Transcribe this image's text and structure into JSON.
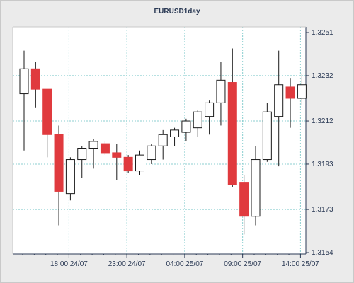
{
  "chart_data": {
    "type": "candlestick",
    "title": "EURUSD1day",
    "y_ticks": [
      "1.3251",
      "1.3232",
      "1.3212",
      "1.3193",
      "1.3173",
      "1.3154"
    ],
    "x_ticks": [
      {
        "label": "18:00 24/07",
        "index": 4
      },
      {
        "label": "23:00 24/07",
        "index": 9
      },
      {
        "label": "04:00 25/07",
        "index": 14
      },
      {
        "label": "09:00 25/07",
        "index": 19
      },
      {
        "label": "14:00 25/07",
        "index": 24
      }
    ],
    "ylim": [
      1.3154,
      1.3251
    ],
    "grid": true,
    "colors": {
      "up_fill": "#ffffff",
      "down_fill": "#e03a3e",
      "outline": "#1a1a1a",
      "grid": "#8ccfd0",
      "plot_bg": "#ffffff"
    },
    "candles": [
      {
        "open": 1.3224,
        "high": 1.3243,
        "low": 1.3199,
        "close": 1.3235
      },
      {
        "open": 1.3235,
        "high": 1.3238,
        "low": 1.3218,
        "close": 1.3226
      },
      {
        "open": 1.3226,
        "high": 1.3226,
        "low": 1.3196,
        "close": 1.3206
      },
      {
        "open": 1.3206,
        "high": 1.321,
        "low": 1.3166,
        "close": 1.3181
      },
      {
        "open": 1.318,
        "high": 1.3196,
        "low": 1.3177,
        "close": 1.3195
      },
      {
        "open": 1.3195,
        "high": 1.3201,
        "low": 1.3187,
        "close": 1.32
      },
      {
        "open": 1.32,
        "high": 1.3204,
        "low": 1.3191,
        "close": 1.3203
      },
      {
        "open": 1.3202,
        "high": 1.3203,
        "low": 1.3197,
        "close": 1.3198
      },
      {
        "open": 1.3198,
        "high": 1.3202,
        "low": 1.3186,
        "close": 1.3196
      },
      {
        "open": 1.3196,
        "high": 1.3197,
        "low": 1.3189,
        "close": 1.319
      },
      {
        "open": 1.319,
        "high": 1.3199,
        "low": 1.3188,
        "close": 1.3197
      },
      {
        "open": 1.3195,
        "high": 1.3202,
        "low": 1.3193,
        "close": 1.3201
      },
      {
        "open": 1.3201,
        "high": 1.3208,
        "low": 1.3195,
        "close": 1.3206
      },
      {
        "open": 1.3205,
        "high": 1.3209,
        "low": 1.3201,
        "close": 1.3208
      },
      {
        "open": 1.3207,
        "high": 1.3213,
        "low": 1.3203,
        "close": 1.3212
      },
      {
        "open": 1.3209,
        "high": 1.3217,
        "low": 1.3205,
        "close": 1.3216
      },
      {
        "open": 1.3214,
        "high": 1.3221,
        "low": 1.3206,
        "close": 1.322
      },
      {
        "open": 1.322,
        "high": 1.3238,
        "low": 1.321,
        "close": 1.323
      },
      {
        "open": 1.3229,
        "high": 1.3244,
        "low": 1.3183,
        "close": 1.3184
      },
      {
        "open": 1.3185,
        "high": 1.3188,
        "low": 1.3162,
        "close": 1.317
      },
      {
        "open": 1.317,
        "high": 1.3201,
        "low": 1.3166,
        "close": 1.3195
      },
      {
        "open": 1.3195,
        "high": 1.322,
        "low": 1.3194,
        "close": 1.3216
      },
      {
        "open": 1.3214,
        "high": 1.3243,
        "low": 1.3192,
        "close": 1.3228
      },
      {
        "open": 1.3227,
        "high": 1.3231,
        "low": 1.3209,
        "close": 1.3222
      },
      {
        "open": 1.3222,
        "high": 1.3233,
        "low": 1.3219,
        "close": 1.3228
      }
    ]
  }
}
